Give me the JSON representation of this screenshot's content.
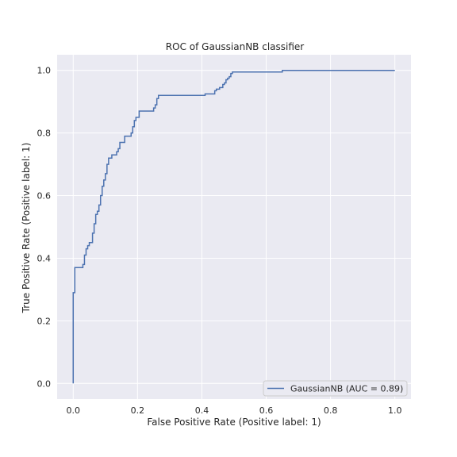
{
  "chart_data": {
    "type": "line",
    "title": "ROC of GaussianNB classifier",
    "xlabel": "False Positive Rate (Positive label: 1)",
    "ylabel": "True Positive Rate (Positive label: 1)",
    "xlim": [
      -0.05,
      1.05
    ],
    "ylim": [
      -0.05,
      1.05
    ],
    "xticks": [
      "0.0",
      "0.2",
      "0.4",
      "0.6",
      "0.8",
      "1.0"
    ],
    "yticks": [
      "0.0",
      "0.2",
      "0.4",
      "0.6",
      "0.8",
      "1.0"
    ],
    "grid": true,
    "legend_position": "bottom-right",
    "background": "#eaeaf2",
    "series": [
      {
        "name": "GaussianNB (AUC = 0.89)",
        "color": "#4c72b0",
        "x": [
          0.0,
          0.0,
          0.005,
          0.005,
          0.008,
          0.008,
          0.03,
          0.03,
          0.035,
          0.035,
          0.04,
          0.04,
          0.045,
          0.045,
          0.05,
          0.05,
          0.055,
          0.055,
          0.06,
          0.06,
          0.065,
          0.065,
          0.07,
          0.07,
          0.075,
          0.075,
          0.08,
          0.08,
          0.085,
          0.085,
          0.09,
          0.09,
          0.095,
          0.095,
          0.1,
          0.1,
          0.105,
          0.105,
          0.11,
          0.11,
          0.115,
          0.115,
          0.12,
          0.12,
          0.135,
          0.135,
          0.14,
          0.14,
          0.145,
          0.145,
          0.16,
          0.16,
          0.18,
          0.18,
          0.185,
          0.185,
          0.19,
          0.19,
          0.195,
          0.195,
          0.205,
          0.205,
          0.21,
          0.21,
          0.25,
          0.25,
          0.255,
          0.255,
          0.26,
          0.26,
          0.265,
          0.265,
          0.275,
          0.275,
          0.41,
          0.41,
          0.44,
          0.44,
          0.445,
          0.445,
          0.455,
          0.455,
          0.465,
          0.465,
          0.47,
          0.47,
          0.475,
          0.475,
          0.48,
          0.48,
          0.485,
          0.485,
          0.49,
          0.49,
          0.495,
          0.495,
          0.5,
          0.5,
          0.65,
          0.65,
          1.0
        ],
        "y": [
          0.0,
          0.29,
          0.29,
          0.37,
          0.37,
          0.37,
          0.37,
          0.38,
          0.38,
          0.41,
          0.41,
          0.43,
          0.43,
          0.44,
          0.44,
          0.45,
          0.45,
          0.45,
          0.45,
          0.48,
          0.48,
          0.51,
          0.51,
          0.54,
          0.54,
          0.55,
          0.55,
          0.57,
          0.57,
          0.6,
          0.6,
          0.63,
          0.63,
          0.65,
          0.65,
          0.67,
          0.67,
          0.7,
          0.7,
          0.72,
          0.72,
          0.72,
          0.72,
          0.73,
          0.73,
          0.74,
          0.74,
          0.75,
          0.75,
          0.77,
          0.77,
          0.79,
          0.79,
          0.8,
          0.8,
          0.82,
          0.82,
          0.84,
          0.84,
          0.85,
          0.85,
          0.87,
          0.87,
          0.87,
          0.87,
          0.88,
          0.88,
          0.89,
          0.89,
          0.91,
          0.91,
          0.92,
          0.92,
          0.92,
          0.92,
          0.925,
          0.925,
          0.935,
          0.935,
          0.94,
          0.94,
          0.945,
          0.945,
          0.955,
          0.955,
          0.96,
          0.96,
          0.97,
          0.97,
          0.975,
          0.975,
          0.98,
          0.98,
          0.99,
          0.99,
          0.995,
          0.995,
          0.995,
          0.995,
          1.0,
          1.0
        ]
      }
    ]
  }
}
